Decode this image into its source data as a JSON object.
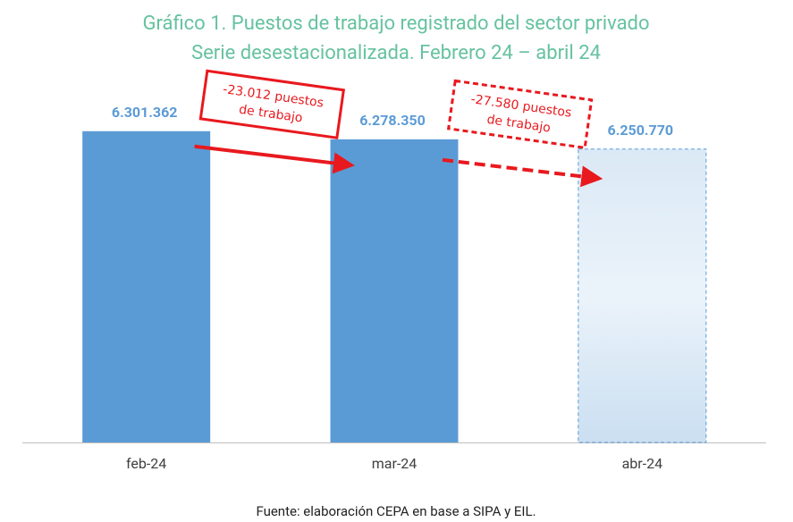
{
  "chart_data": {
    "type": "bar",
    "title": "Gráfico 1. Puestos de trabajo registrado del sector privado",
    "subtitle": "Serie desestacionalizada. Febrero 24 – abril 24",
    "categories": [
      "feb-24",
      "mar-24",
      "abr-24"
    ],
    "values": [
      6301362,
      6278350,
      6250770
    ],
    "value_labels": [
      "6.301.362",
      "6.278.350",
      "6.250.770"
    ],
    "styles": [
      "solid",
      "solid",
      "dashed"
    ],
    "color": "#5b9bd5",
    "ylim": [
      5420000,
      6440000
    ],
    "annotations": [
      {
        "lines": [
          "-23.012 puestos",
          "de trabajo"
        ],
        "style": "solid"
      },
      {
        "lines": [
          "-27.580 puestos",
          "de trabajo"
        ],
        "style": "dashed"
      }
    ],
    "source": "Fuente: elaboración CEPA en base a SIPA y EIL."
  }
}
